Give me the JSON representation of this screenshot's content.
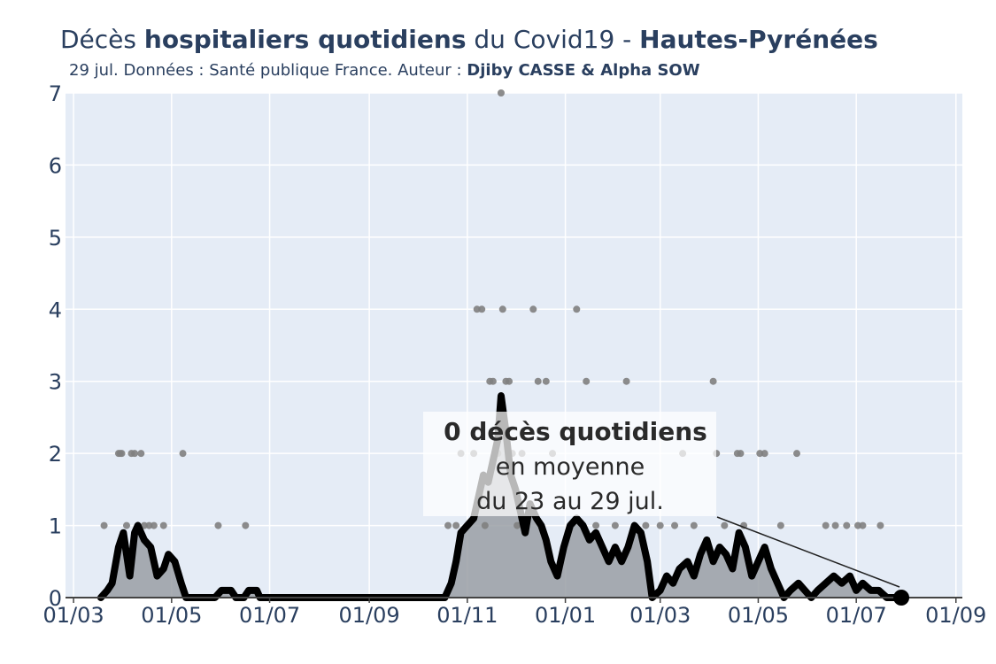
{
  "chart_data": {
    "type": "line",
    "title": {
      "prefix": "Décès ",
      "bold": "hospitaliers quotidiens",
      "middle": " du Covid19 - ",
      "region": "Hautes-Pyrénées"
    },
    "subtitle": {
      "text": "29 jul. Données : Santé publique France. Auteur : ",
      "authors": "Djiby CASSE & Alpha SOW"
    },
    "xlabel": "",
    "ylabel": "",
    "x_range": [
      "2020-02-25",
      "2021-09-05"
    ],
    "x_ticks": [
      {
        "date": "2020-03-01",
        "label": "01/03"
      },
      {
        "date": "2020-05-01",
        "label": "01/05"
      },
      {
        "date": "2020-07-01",
        "label": "01/07"
      },
      {
        "date": "2020-09-01",
        "label": "01/09"
      },
      {
        "date": "2020-11-01",
        "label": "01/11"
      },
      {
        "date": "2021-01-01",
        "label": "01/01"
      },
      {
        "date": "2021-03-01",
        "label": "01/03"
      },
      {
        "date": "2021-05-01",
        "label": "01/05"
      },
      {
        "date": "2021-07-01",
        "label": "01/07"
      },
      {
        "date": "2021-09-01",
        "label": "01/09"
      }
    ],
    "ylim": [
      0,
      7
    ],
    "y_ticks": [
      0,
      1,
      2,
      3,
      4,
      5,
      6,
      7
    ],
    "grid": true,
    "series": [
      {
        "kind": "daily",
        "style": "scatter",
        "color": "#7f7f7f",
        "points": [
          {
            "x": "2020-03-20",
            "y": 1
          },
          {
            "x": "2020-03-29",
            "y": 2
          },
          {
            "x": "2020-03-30",
            "y": 2
          },
          {
            "x": "2020-03-31",
            "y": 2
          },
          {
            "x": "2020-04-03",
            "y": 1
          },
          {
            "x": "2020-04-06",
            "y": 2
          },
          {
            "x": "2020-04-08",
            "y": 2
          },
          {
            "x": "2020-04-10",
            "y": 1
          },
          {
            "x": "2020-04-12",
            "y": 2
          },
          {
            "x": "2020-04-14",
            "y": 1
          },
          {
            "x": "2020-04-17",
            "y": 1
          },
          {
            "x": "2020-04-20",
            "y": 1
          },
          {
            "x": "2020-04-26",
            "y": 1
          },
          {
            "x": "2020-05-08",
            "y": 2
          },
          {
            "x": "2020-05-30",
            "y": 1
          },
          {
            "x": "2020-06-16",
            "y": 1
          },
          {
            "x": "2020-10-20",
            "y": 1
          },
          {
            "x": "2020-10-25",
            "y": 1
          },
          {
            "x": "2020-10-28",
            "y": 2
          },
          {
            "x": "2020-11-01",
            "y": 1
          },
          {
            "x": "2020-11-05",
            "y": 2
          },
          {
            "x": "2020-11-07",
            "y": 4
          },
          {
            "x": "2020-11-10",
            "y": 4
          },
          {
            "x": "2020-11-12",
            "y": 1
          },
          {
            "x": "2020-11-15",
            "y": 3
          },
          {
            "x": "2020-11-17",
            "y": 3
          },
          {
            "x": "2020-11-20",
            "y": 2
          },
          {
            "x": "2020-11-22",
            "y": 7
          },
          {
            "x": "2020-11-23",
            "y": 4
          },
          {
            "x": "2020-11-25",
            "y": 3
          },
          {
            "x": "2020-11-27",
            "y": 3
          },
          {
            "x": "2020-11-29",
            "y": 2
          },
          {
            "x": "2020-12-02",
            "y": 1
          },
          {
            "x": "2020-12-05",
            "y": 2
          },
          {
            "x": "2020-12-12",
            "y": 4
          },
          {
            "x": "2020-12-15",
            "y": 3
          },
          {
            "x": "2020-12-20",
            "y": 3
          },
          {
            "x": "2020-12-24",
            "y": 2
          },
          {
            "x": "2021-01-08",
            "y": 4
          },
          {
            "x": "2021-01-14",
            "y": 3
          },
          {
            "x": "2021-01-20",
            "y": 1
          },
          {
            "x": "2021-02-01",
            "y": 1
          },
          {
            "x": "2021-02-08",
            "y": 3
          },
          {
            "x": "2021-02-20",
            "y": 1
          },
          {
            "x": "2021-03-01",
            "y": 1
          },
          {
            "x": "2021-03-10",
            "y": 1
          },
          {
            "x": "2021-03-15",
            "y": 2
          },
          {
            "x": "2021-03-22",
            "y": 1
          },
          {
            "x": "2021-04-03",
            "y": 3
          },
          {
            "x": "2021-04-05",
            "y": 2
          },
          {
            "x": "2021-04-10",
            "y": 1
          },
          {
            "x": "2021-04-18",
            "y": 2
          },
          {
            "x": "2021-04-20",
            "y": 2
          },
          {
            "x": "2021-04-22",
            "y": 1
          },
          {
            "x": "2021-05-02",
            "y": 2
          },
          {
            "x": "2021-05-05",
            "y": 2
          },
          {
            "x": "2021-05-15",
            "y": 1
          },
          {
            "x": "2021-05-25",
            "y": 2
          },
          {
            "x": "2021-06-12",
            "y": 1
          },
          {
            "x": "2021-06-18",
            "y": 1
          },
          {
            "x": "2021-06-25",
            "y": 1
          },
          {
            "x": "2021-07-02",
            "y": 1
          },
          {
            "x": "2021-07-05",
            "y": 1
          },
          {
            "x": "2021-07-16",
            "y": 1
          }
        ]
      },
      {
        "kind": "rolling-mean",
        "style": "line-area",
        "color": "#000000",
        "fill": "#9a9fa4",
        "points": [
          {
            "x": "2020-03-18",
            "y": 0
          },
          {
            "x": "2020-03-22",
            "y": 0.1
          },
          {
            "x": "2020-03-25",
            "y": 0.2
          },
          {
            "x": "2020-03-29",
            "y": 0.7
          },
          {
            "x": "2020-04-01",
            "y": 0.9
          },
          {
            "x": "2020-04-03",
            "y": 0.6
          },
          {
            "x": "2020-04-05",
            "y": 0.3
          },
          {
            "x": "2020-04-08",
            "y": 0.9
          },
          {
            "x": "2020-04-10",
            "y": 1.0
          },
          {
            "x": "2020-04-14",
            "y": 0.8
          },
          {
            "x": "2020-04-18",
            "y": 0.7
          },
          {
            "x": "2020-04-22",
            "y": 0.3
          },
          {
            "x": "2020-04-26",
            "y": 0.4
          },
          {
            "x": "2020-04-29",
            "y": 0.6
          },
          {
            "x": "2020-05-03",
            "y": 0.5
          },
          {
            "x": "2020-05-07",
            "y": 0.2
          },
          {
            "x": "2020-05-10",
            "y": 0
          },
          {
            "x": "2020-05-28",
            "y": 0
          },
          {
            "x": "2020-06-01",
            "y": 0.1
          },
          {
            "x": "2020-06-07",
            "y": 0.1
          },
          {
            "x": "2020-06-10",
            "y": 0
          },
          {
            "x": "2020-06-15",
            "y": 0
          },
          {
            "x": "2020-06-18",
            "y": 0.1
          },
          {
            "x": "2020-06-23",
            "y": 0.1
          },
          {
            "x": "2020-06-25",
            "y": 0
          },
          {
            "x": "2020-10-18",
            "y": 0
          },
          {
            "x": "2020-10-22",
            "y": 0.2
          },
          {
            "x": "2020-10-25",
            "y": 0.5
          },
          {
            "x": "2020-10-28",
            "y": 0.9
          },
          {
            "x": "2020-11-01",
            "y": 1.0
          },
          {
            "x": "2020-11-05",
            "y": 1.1
          },
          {
            "x": "2020-11-08",
            "y": 1.4
          },
          {
            "x": "2020-11-11",
            "y": 1.7
          },
          {
            "x": "2020-11-14",
            "y": 1.6
          },
          {
            "x": "2020-11-17",
            "y": 1.9
          },
          {
            "x": "2020-11-20",
            "y": 2.2
          },
          {
            "x": "2020-11-22",
            "y": 2.8
          },
          {
            "x": "2020-11-25",
            "y": 2.3
          },
          {
            "x": "2020-11-28",
            "y": 1.7
          },
          {
            "x": "2020-12-01",
            "y": 1.5
          },
          {
            "x": "2020-12-04",
            "y": 1.2
          },
          {
            "x": "2020-12-07",
            "y": 0.9
          },
          {
            "x": "2020-12-10",
            "y": 1.3
          },
          {
            "x": "2020-12-14",
            "y": 1.1
          },
          {
            "x": "2020-12-17",
            "y": 1.0
          },
          {
            "x": "2020-12-20",
            "y": 0.8
          },
          {
            "x": "2020-12-23",
            "y": 0.5
          },
          {
            "x": "2020-12-27",
            "y": 0.3
          },
          {
            "x": "2020-12-31",
            "y": 0.7
          },
          {
            "x": "2021-01-04",
            "y": 1.0
          },
          {
            "x": "2021-01-08",
            "y": 1.1
          },
          {
            "x": "2021-01-12",
            "y": 1.0
          },
          {
            "x": "2021-01-16",
            "y": 0.8
          },
          {
            "x": "2021-01-20",
            "y": 0.9
          },
          {
            "x": "2021-01-24",
            "y": 0.7
          },
          {
            "x": "2021-01-28",
            "y": 0.5
          },
          {
            "x": "2021-02-01",
            "y": 0.7
          },
          {
            "x": "2021-02-05",
            "y": 0.5
          },
          {
            "x": "2021-02-09",
            "y": 0.7
          },
          {
            "x": "2021-02-13",
            "y": 1.0
          },
          {
            "x": "2021-02-17",
            "y": 0.9
          },
          {
            "x": "2021-02-21",
            "y": 0.5
          },
          {
            "x": "2021-02-24",
            "y": 0
          },
          {
            "x": "2021-03-01",
            "y": 0.1
          },
          {
            "x": "2021-03-05",
            "y": 0.3
          },
          {
            "x": "2021-03-09",
            "y": 0.2
          },
          {
            "x": "2021-03-13",
            "y": 0.4
          },
          {
            "x": "2021-03-18",
            "y": 0.5
          },
          {
            "x": "2021-03-22",
            "y": 0.3
          },
          {
            "x": "2021-03-26",
            "y": 0.6
          },
          {
            "x": "2021-03-30",
            "y": 0.8
          },
          {
            "x": "2021-04-03",
            "y": 0.5
          },
          {
            "x": "2021-04-07",
            "y": 0.7
          },
          {
            "x": "2021-04-11",
            "y": 0.6
          },
          {
            "x": "2021-04-15",
            "y": 0.4
          },
          {
            "x": "2021-04-19",
            "y": 0.9
          },
          {
            "x": "2021-04-23",
            "y": 0.7
          },
          {
            "x": "2021-04-27",
            "y": 0.3
          },
          {
            "x": "2021-05-01",
            "y": 0.5
          },
          {
            "x": "2021-05-05",
            "y": 0.7
          },
          {
            "x": "2021-05-09",
            "y": 0.4
          },
          {
            "x": "2021-05-13",
            "y": 0.2
          },
          {
            "x": "2021-05-17",
            "y": 0
          },
          {
            "x": "2021-05-21",
            "y": 0.1
          },
          {
            "x": "2021-05-26",
            "y": 0.2
          },
          {
            "x": "2021-05-30",
            "y": 0.1
          },
          {
            "x": "2021-06-03",
            "y": 0
          },
          {
            "x": "2021-06-07",
            "y": 0.1
          },
          {
            "x": "2021-06-12",
            "y": 0.2
          },
          {
            "x": "2021-06-17",
            "y": 0.3
          },
          {
            "x": "2021-06-22",
            "y": 0.2
          },
          {
            "x": "2021-06-27",
            "y": 0.3
          },
          {
            "x": "2021-07-01",
            "y": 0.1
          },
          {
            "x": "2021-07-05",
            "y": 0.2
          },
          {
            "x": "2021-07-10",
            "y": 0.1
          },
          {
            "x": "2021-07-15",
            "y": 0.1
          },
          {
            "x": "2021-07-20",
            "y": 0
          },
          {
            "x": "2021-07-29",
            "y": 0
          }
        ]
      }
    ],
    "annotation": {
      "title": "0 décès quotidiens",
      "line1": "en moyenne",
      "line2": "du 23 au 29 jul.",
      "point": {
        "x": "2021-07-29",
        "y": 0
      }
    }
  }
}
